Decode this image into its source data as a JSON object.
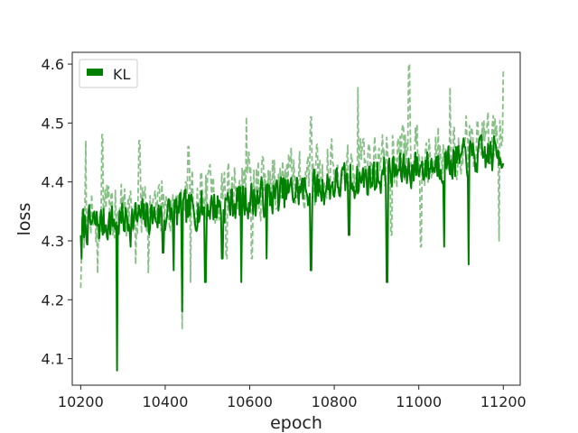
{
  "chart_data": {
    "type": "line",
    "title": "",
    "xlabel": "epoch",
    "ylabel": "loss",
    "xlim": [
      10180,
      11240
    ],
    "ylim": [
      4.055,
      4.62
    ],
    "x_ticks": [
      10200,
      10400,
      10600,
      10800,
      11000,
      11200
    ],
    "y_ticks": [
      4.1,
      4.2,
      4.3,
      4.4,
      4.5,
      4.6
    ],
    "grid": false,
    "legend": {
      "placement": "top-left",
      "entries": [
        "KL"
      ]
    },
    "x_range": [
      10200,
      11200
    ],
    "series": [
      {
        "name": "KL",
        "style": "solid",
        "color": "#008000",
        "trend": [
          [
            10200,
            4.325
          ],
          [
            10400,
            4.345
          ],
          [
            10600,
            4.37
          ],
          [
            10800,
            4.395
          ],
          [
            11000,
            4.425
          ],
          [
            11200,
            4.45
          ]
        ],
        "min": 4.08,
        "max": 4.52,
        "dips": [
          [
            10202,
            4.27
          ],
          [
            10286,
            4.08
          ],
          [
            10318,
            4.29
          ],
          [
            10395,
            4.28
          ],
          [
            10420,
            4.25
          ],
          [
            10440,
            4.18
          ],
          [
            10495,
            4.23
          ],
          [
            10535,
            4.27
          ],
          [
            10580,
            4.23
          ],
          [
            10640,
            4.27
          ],
          [
            10745,
            4.25
          ],
          [
            10835,
            4.31
          ],
          [
            10925,
            4.23
          ],
          [
            11060,
            4.29
          ],
          [
            11118,
            4.26
          ]
        ]
      },
      {
        "name": "",
        "style": "dashed",
        "color": "#88c088",
        "trend": [
          [
            10200,
            4.335
          ],
          [
            10400,
            4.365
          ],
          [
            10600,
            4.39
          ],
          [
            10800,
            4.42
          ],
          [
            11000,
            4.445
          ],
          [
            11200,
            4.48
          ]
        ],
        "min": 4.15,
        "max": 4.6,
        "dips": [
          [
            10200,
            4.22
          ],
          [
            10240,
            4.245
          ],
          [
            10330,
            4.26
          ],
          [
            10360,
            4.245
          ],
          [
            10440,
            4.15
          ],
          [
            10460,
            4.23
          ],
          [
            10545,
            4.27
          ],
          [
            10605,
            4.27
          ],
          [
            10745,
            4.225
          ],
          [
            10835,
            4.31
          ],
          [
            10935,
            4.31
          ],
          [
            11005,
            4.29
          ],
          [
            11118,
            4.29
          ],
          [
            11190,
            4.3
          ]
        ],
        "peaks": [
          [
            10212,
            4.47
          ],
          [
            10251,
            4.48
          ],
          [
            10339,
            4.47
          ],
          [
            10455,
            4.46
          ],
          [
            10592,
            4.51
          ],
          [
            10745,
            4.51
          ],
          [
            10856,
            4.56
          ],
          [
            10977,
            4.6
          ],
          [
            11074,
            4.56
          ],
          [
            11200,
            4.59
          ]
        ]
      }
    ]
  }
}
